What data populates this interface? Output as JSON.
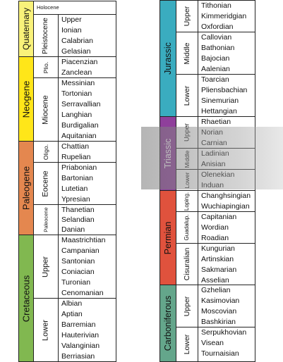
{
  "left_column": {
    "periods": [
      {
        "id": "quaternary",
        "name": "Quaternary",
        "color": "#f9f27a"
      },
      {
        "id": "neogene",
        "name": "Neogene",
        "color": "#ffe619"
      },
      {
        "id": "paleogene",
        "name": "Paleogene",
        "color": "#e4874f"
      },
      {
        "id": "cretaceous",
        "name": "Cretaceous",
        "color": "#81b850"
      }
    ],
    "epochs": [
      {
        "id": "holocene",
        "name": "Holocene",
        "stages": []
      },
      {
        "id": "pleistocene",
        "name": "Pleistocene",
        "stages": [
          "Upper",
          "Ionian",
          "Calabrian",
          "Gelasian"
        ]
      },
      {
        "id": "pliocene",
        "name": "Plio.",
        "stages": [
          "Piacenzian",
          "Zanclean"
        ]
      },
      {
        "id": "miocene",
        "name": "Miocene",
        "stages": [
          "Messinian",
          "Tortonian",
          "Serravallian",
          "Langhian",
          "Burdigalian",
          "Aquitanian"
        ]
      },
      {
        "id": "oligocene",
        "name": "Oligo.",
        "stages": [
          "Chattian",
          "Rupelian"
        ]
      },
      {
        "id": "eocene",
        "name": "Eocene",
        "stages": [
          "Priabonian",
          "Bartonian",
          "Lutetian",
          "Ypresian"
        ]
      },
      {
        "id": "paleocene",
        "name": "Paleocene",
        "stages": [
          "Thanetian",
          "Selandian",
          "Danian"
        ]
      },
      {
        "id": "upper-cretaceous",
        "name": "Upper",
        "stages": [
          "Maastrichtian",
          "Campanian",
          "Santonian",
          "Coniacian",
          "Turonian",
          "Cenomanian"
        ]
      },
      {
        "id": "lower-cretaceous",
        "name": "Lower",
        "stages": [
          "Albian",
          "Aptian",
          "Barremian",
          "Hauterivian",
          "Valanginian",
          "Berriasian"
        ]
      }
    ]
  },
  "right_column": {
    "periods": [
      {
        "id": "jurassic",
        "name": "Jurassic",
        "color": "#3aacbf"
      },
      {
        "id": "triassic",
        "name": "Triassic",
        "color": "#8f3f9b"
      },
      {
        "id": "permian",
        "name": "Permian",
        "color": "#e0523d"
      },
      {
        "id": "carboniferous",
        "name": "Carboniferous",
        "color": "#64a68b"
      }
    ],
    "epochs": [
      {
        "id": "upper-jurassic",
        "name": "Upper",
        "stages": [
          "Tithonian",
          "Kimmeridgian",
          "Oxfordian"
        ]
      },
      {
        "id": "middle-jurassic",
        "name": "Middle",
        "stages": [
          "Callovian",
          "Bathonian",
          "Bajocian",
          "Aalenian"
        ]
      },
      {
        "id": "lower-jurassic",
        "name": "Lower",
        "stages": [
          "Toarcian",
          "Pliensbachian",
          "Sinemurian",
          "Hettangian"
        ]
      },
      {
        "id": "upper-triassic",
        "name": "Upper",
        "stages": [
          "Rhaetian",
          "Norian",
          "Carnian"
        ]
      },
      {
        "id": "middle-triassic",
        "name": "Middle",
        "stages": [
          "Ladinian",
          "Anisian"
        ]
      },
      {
        "id": "lower-triassic",
        "name": "Lower",
        "stages": [
          "Olenekian",
          "Induan"
        ]
      },
      {
        "id": "lopingian",
        "name": "Loping.",
        "stages": [
          "Changhsingian",
          "Wuchiapingian"
        ]
      },
      {
        "id": "guadalupian",
        "name": "Guadalup.",
        "stages": [
          "Capitanian",
          "Wordian",
          "Roadian"
        ]
      },
      {
        "id": "cisuralian",
        "name": "Cisuralian",
        "stages": [
          "Kungurian",
          "Artinskian",
          "Sakmarian",
          "Asselian"
        ]
      },
      {
        "id": "upper-carboniferous",
        "name": "Upper",
        "stages": [
          "Gzhelian",
          "Kasimovian",
          "Moscovian",
          "Bashkirian"
        ]
      },
      {
        "id": "lower-carboniferous",
        "name": "Lower",
        "stages": [
          "Serpukhovian",
          "Visean",
          "Tournaisian"
        ]
      }
    ]
  },
  "highlight": {
    "covers": [
      "Norian",
      "Carnian",
      "Ladinian",
      "Anisian",
      "Olenekian",
      "Induan"
    ],
    "color": "#888888"
  }
}
